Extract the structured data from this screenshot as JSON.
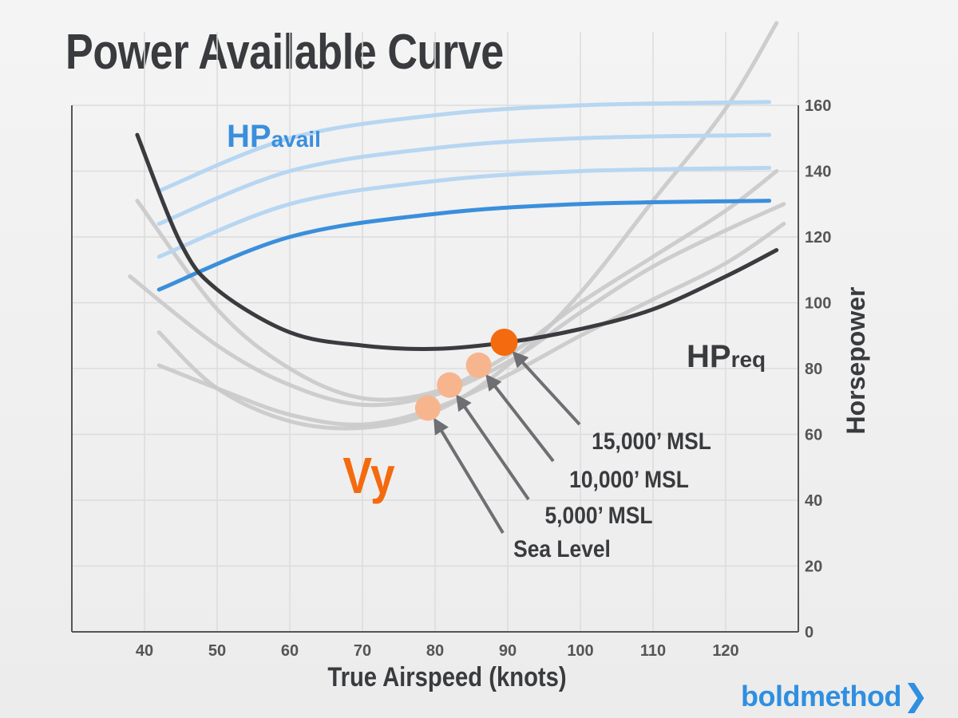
{
  "title": "Power Available Curve",
  "brand": {
    "text": "boldmethod",
    "chevron_icon": "chevron-right-icon"
  },
  "chart_data": {
    "type": "line",
    "xlabel": "True Airspeed (knots)",
    "ylabel": "Horsepower",
    "xlim": [
      30,
      130
    ],
    "ylim": [
      0,
      160
    ],
    "xticks": [
      40,
      50,
      60,
      70,
      80,
      90,
      100,
      110,
      120
    ],
    "yticks": [
      0,
      20,
      40,
      60,
      80,
      100,
      120,
      140,
      160
    ],
    "y_axis_side": "right",
    "grid": true,
    "annotations": {
      "hpavail": {
        "main": "HP",
        "sub": "avail"
      },
      "hpreq": {
        "main": "HP",
        "sub": "req"
      },
      "vy": "Vy",
      "altitudes": [
        "15,000’ MSL",
        "10,000’ MSL",
        "5,000’ MSL",
        "Sea Level"
      ]
    },
    "series": [
      {
        "group": "hp_available",
        "style": "faded-blue",
        "points": [
          [
            42,
            134
          ],
          [
            60,
            150
          ],
          [
            80,
            157
          ],
          [
            100,
            160
          ],
          [
            126,
            161
          ]
        ]
      },
      {
        "group": "hp_available",
        "style": "faded-blue",
        "points": [
          [
            42,
            124
          ],
          [
            60,
            140
          ],
          [
            80,
            147
          ],
          [
            100,
            150
          ],
          [
            126,
            151
          ]
        ]
      },
      {
        "group": "hp_available",
        "style": "faded-blue",
        "points": [
          [
            42,
            114
          ],
          [
            60,
            130
          ],
          [
            80,
            137
          ],
          [
            100,
            140
          ],
          [
            126,
            141
          ]
        ]
      },
      {
        "group": "hp_available",
        "style": "highlight-blue",
        "points": [
          [
            42,
            104
          ],
          [
            60,
            120
          ],
          [
            80,
            127
          ],
          [
            100,
            130
          ],
          [
            126,
            131
          ]
        ]
      },
      {
        "group": "hp_required",
        "style": "faded-gray",
        "points": [
          [
            42,
            91
          ],
          [
            50,
            74
          ],
          [
            60,
            64
          ],
          [
            70,
            62
          ],
          [
            80,
            67
          ],
          [
            90,
            81
          ],
          [
            100,
            103
          ],
          [
            110,
            131
          ],
          [
            120,
            159
          ],
          [
            127,
            185
          ]
        ]
      },
      {
        "group": "hp_required",
        "style": "faded-gray",
        "points": [
          [
            39,
            131
          ],
          [
            50,
            98
          ],
          [
            60,
            80
          ],
          [
            70,
            71
          ],
          [
            80,
            73
          ],
          [
            90,
            84
          ],
          [
            100,
            100
          ],
          [
            110,
            114
          ],
          [
            120,
            128
          ],
          [
            127,
            140
          ]
        ]
      },
      {
        "group": "hp_required",
        "style": "faded-gray",
        "points": [
          [
            38,
            108
          ],
          [
            50,
            87
          ],
          [
            60,
            75
          ],
          [
            70,
            69
          ],
          [
            80,
            72
          ],
          [
            90,
            82
          ],
          [
            100,
            97
          ],
          [
            110,
            111
          ],
          [
            120,
            122
          ],
          [
            128,
            130
          ]
        ]
      },
      {
        "group": "hp_required",
        "style": "faded-gray",
        "points": [
          [
            42,
            81
          ],
          [
            50,
            74
          ],
          [
            60,
            66
          ],
          [
            70,
            63
          ],
          [
            80,
            68
          ],
          [
            90,
            78
          ],
          [
            100,
            90
          ],
          [
            110,
            101
          ],
          [
            120,
            112
          ],
          [
            128,
            124
          ]
        ]
      },
      {
        "group": "hp_required",
        "style": "dark",
        "points": [
          [
            39,
            151
          ],
          [
            45,
            118
          ],
          [
            50,
            104
          ],
          [
            60,
            91
          ],
          [
            70,
            87
          ],
          [
            80,
            86
          ],
          [
            90,
            88
          ],
          [
            100,
            92
          ],
          [
            110,
            98
          ],
          [
            120,
            108
          ],
          [
            127,
            116
          ]
        ]
      }
    ],
    "vy_points": [
      {
        "label": "15,000’ MSL",
        "x": 89.5,
        "y": 88,
        "emphasis": true
      },
      {
        "label": "10,000’ MSL",
        "x": 86,
        "y": 81,
        "emphasis": false
      },
      {
        "label": "5,000’ MSL",
        "x": 82,
        "y": 75,
        "emphasis": false
      },
      {
        "label": "Sea Level",
        "x": 79,
        "y": 68,
        "emphasis": false
      }
    ]
  },
  "colors": {
    "title": "#3a3b3e",
    "grid": "#dcdcdc",
    "axis": "#555555",
    "faded_blue": "#b7d6f2",
    "highlight_blue": "#3a8fdc",
    "faded_gray": "#c9c9c9",
    "dark_curve": "#3a3b3e",
    "vy_highlight": "#f46a0e",
    "vy_faded": "#f7b58e",
    "arrow": "#6e6f72",
    "vy_label": "#f46a0e",
    "hpavail_label": "#3a8fdc",
    "brand": "#2f8fe0"
  }
}
